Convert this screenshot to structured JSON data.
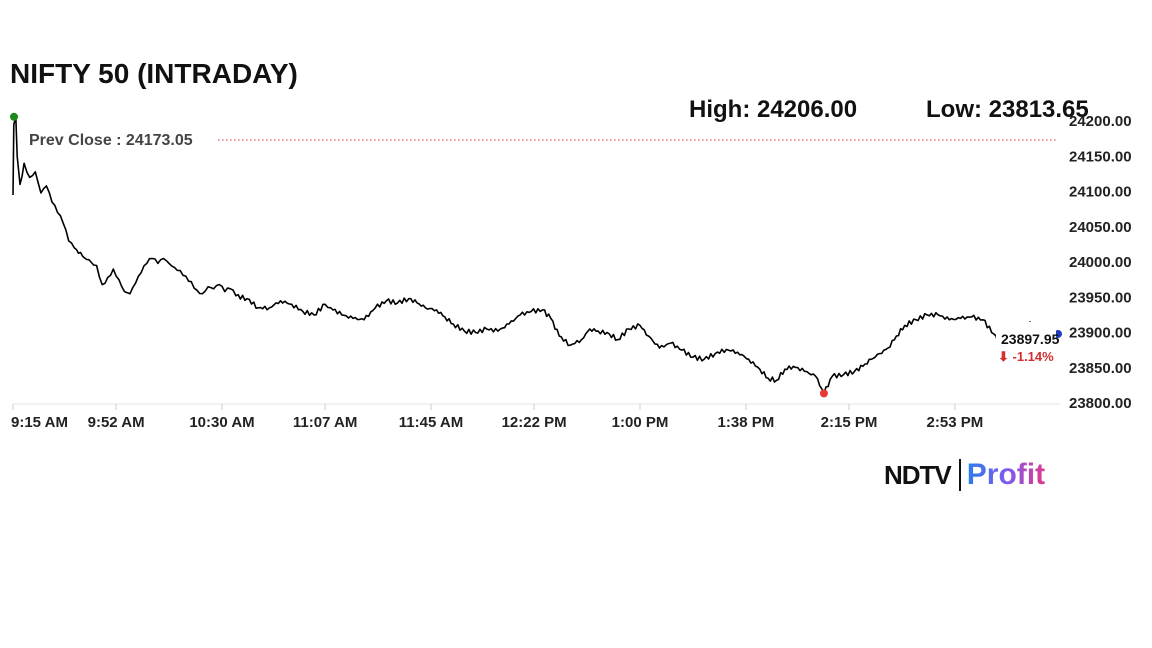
{
  "title": "NIFTY 50 (INTRADAY)",
  "stats": {
    "high_label": "High: 24206.00",
    "low_label": "Low: 23813.65"
  },
  "logo": {
    "brand": "NDTV",
    "product": "Profit"
  },
  "chart_data": {
    "type": "line",
    "title": "NIFTY 50 (INTRADAY)",
    "x_tick_labels": [
      "9:15 AM",
      "9:52 AM",
      "10:30 AM",
      "11:07 AM",
      "11:45 AM",
      "12:22 PM",
      "1:00 PM",
      "1:38 PM",
      "2:15 PM",
      "2:53 PM"
    ],
    "y_tick_labels": [
      "24200.00",
      "24150.00",
      "24100.00",
      "24050.00",
      "24000.00",
      "23950.00",
      "23900.00",
      "23850.00",
      "23800.00"
    ],
    "ylim": [
      23800,
      24200
    ],
    "y_ticks": [
      24200,
      24150,
      24100,
      24050,
      24000,
      23950,
      23900,
      23850,
      23800
    ],
    "x_range_minutes": [
      0,
      375
    ],
    "x_tick_minutes": [
      0,
      37,
      75,
      112,
      150,
      187,
      225,
      263,
      300,
      338
    ],
    "prev_close": {
      "label": "Prev Close : 24173.05",
      "value": 24173.05,
      "color": "#d32f2f"
    },
    "high": {
      "value": 24206.0,
      "time_minutes": 0,
      "color": "#1b8a1b"
    },
    "low": {
      "value": 23813.65,
      "time_minutes": 291,
      "color": "#e53935"
    },
    "last": {
      "value": 23897.95,
      "value_label": "23897.95",
      "change_label": "⬇ -1.14%",
      "change_color": "#d32f2f",
      "marker_color": "#1f3fbf",
      "time_minutes": 375
    },
    "series": [
      {
        "color": "#000000",
        "points": [
          [
            0,
            24095
          ],
          [
            0.3,
            24195
          ],
          [
            1,
            24206
          ],
          [
            1.5,
            24150
          ],
          [
            2.5,
            24110
          ],
          [
            4,
            24140
          ],
          [
            6,
            24120
          ],
          [
            8,
            24128
          ],
          [
            10,
            24098
          ],
          [
            12,
            24108
          ],
          [
            14,
            24085
          ],
          [
            16,
            24070
          ],
          [
            18,
            24055
          ],
          [
            20,
            24030
          ],
          [
            22,
            24020
          ],
          [
            25,
            24008
          ],
          [
            28,
            24000
          ],
          [
            30,
            23995
          ],
          [
            32,
            23968
          ],
          [
            34,
            23978
          ],
          [
            36,
            23990
          ],
          [
            38,
            23975
          ],
          [
            40,
            23958
          ],
          [
            42,
            23955
          ],
          [
            44,
            23970
          ],
          [
            46,
            23985
          ],
          [
            48,
            23998
          ],
          [
            50,
            24005
          ],
          [
            52,
            23998
          ],
          [
            54,
            24005
          ],
          [
            56,
            23998
          ],
          [
            58,
            23992
          ],
          [
            60,
            23988
          ],
          [
            62,
            23980
          ],
          [
            64,
            23972
          ],
          [
            66,
            23960
          ],
          [
            68,
            23955
          ],
          [
            70,
            23965
          ],
          [
            72,
            23962
          ],
          [
            74,
            23968
          ],
          [
            76,
            23958
          ],
          [
            78,
            23962
          ],
          [
            80,
            23952
          ],
          [
            84,
            23948
          ],
          [
            88,
            23935
          ],
          [
            92,
            23935
          ],
          [
            96,
            23945
          ],
          [
            100,
            23940
          ],
          [
            104,
            23930
          ],
          [
            108,
            23925
          ],
          [
            112,
            23940
          ],
          [
            114,
            23935
          ],
          [
            118,
            23925
          ],
          [
            122,
            23920
          ],
          [
            126,
            23918
          ],
          [
            130,
            23935
          ],
          [
            134,
            23945
          ],
          [
            138,
            23942
          ],
          [
            142,
            23948
          ],
          [
            145,
            23942
          ],
          [
            148,
            23935
          ],
          [
            152,
            23932
          ],
          [
            155,
            23922
          ],
          [
            158,
            23912
          ],
          [
            162,
            23902
          ],
          [
            166,
            23900
          ],
          [
            170,
            23905
          ],
          [
            174,
            23902
          ],
          [
            178,
            23912
          ],
          [
            182,
            23925
          ],
          [
            186,
            23930
          ],
          [
            190,
            23932
          ],
          [
            193,
            23920
          ],
          [
            196,
            23895
          ],
          [
            200,
            23882
          ],
          [
            204,
            23890
          ],
          [
            207,
            23905
          ],
          [
            210,
            23902
          ],
          [
            214,
            23898
          ],
          [
            217,
            23890
          ],
          [
            221,
            23905
          ],
          [
            225,
            23910
          ],
          [
            228,
            23895
          ],
          [
            232,
            23878
          ],
          [
            236,
            23885
          ],
          [
            240,
            23875
          ],
          [
            244,
            23865
          ],
          [
            248,
            23862
          ],
          [
            252,
            23870
          ],
          [
            256,
            23876
          ],
          [
            260,
            23872
          ],
          [
            264,
            23862
          ],
          [
            268,
            23848
          ],
          [
            271,
            23835
          ],
          [
            274,
            23832
          ],
          [
            277,
            23848
          ],
          [
            280,
            23852
          ],
          [
            284,
            23845
          ],
          [
            288,
            23838
          ],
          [
            291,
            23813.65
          ],
          [
            294,
            23838
          ],
          [
            298,
            23840
          ],
          [
            302,
            23845
          ],
          [
            305,
            23852
          ],
          [
            308,
            23862
          ],
          [
            311,
            23870
          ],
          [
            314,
            23878
          ],
          [
            317,
            23895
          ],
          [
            320,
            23910
          ],
          [
            324,
            23918
          ],
          [
            328,
            23925
          ],
          [
            332,
            23925
          ],
          [
            336,
            23918
          ],
          [
            340,
            23920
          ],
          [
            344,
            23922
          ],
          [
            348,
            23918
          ],
          [
            352,
            23898
          ],
          [
            355,
            23875
          ],
          [
            357,
            23865
          ],
          [
            359,
            23880
          ],
          [
            362,
            23895
          ],
          [
            365,
            23915
          ],
          [
            368,
            23908
          ],
          [
            371,
            23905
          ],
          [
            373,
            23900
          ],
          [
            375,
            23897.95
          ]
        ]
      }
    ]
  }
}
